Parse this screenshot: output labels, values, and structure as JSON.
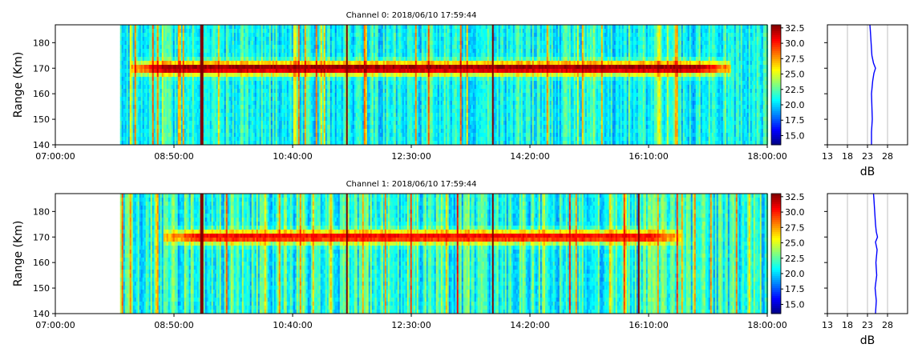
{
  "chart_data": [
    {
      "type": "heatmap",
      "title": "Channel 0: 2018/06/10 17:59:44",
      "ylabel": "Range (Km)",
      "xlim": [
        "07:00:00",
        "18:00:00"
      ],
      "x_ticks": [
        "07:00:00",
        "08:50:00",
        "10:40:00",
        "12:30:00",
        "14:20:00",
        "16:10:00",
        "18:00:00"
      ],
      "ylim": [
        140,
        187
      ],
      "y_ticks": [
        140,
        150,
        160,
        170,
        180
      ],
      "data_start": "08:00:00",
      "data_end": "17:59:44",
      "echo_layer": {
        "range_km": 170,
        "start": "08:10:00",
        "end": "17:25:00",
        "peak_db": 33
      },
      "background_db": [
        19,
        23
      ],
      "strong_columns": [
        "09:15:00",
        "11:30:00",
        "13:45:00"
      ],
      "colorbar": {
        "colormap": "jet",
        "min": 13.5,
        "max": 33,
        "ticks": [
          15.0,
          17.5,
          20.0,
          22.5,
          25.0,
          27.5,
          30.0,
          32.5
        ]
      },
      "profile": {
        "xlabel": "dB",
        "xlim": [
          13,
          33
        ],
        "x_ticks": [
          13,
          18,
          23,
          28
        ],
        "grid": true,
        "range_km": [
          140,
          145,
          150,
          155,
          160,
          165,
          168,
          170,
          172,
          175,
          180,
          185,
          187
        ],
        "db": [
          24.0,
          24.0,
          24.2,
          24.1,
          24.0,
          24.3,
          24.6,
          25.0,
          24.5,
          24.1,
          23.9,
          23.7,
          23.6
        ]
      }
    },
    {
      "type": "heatmap",
      "title": "Channel 1: 2018/06/10 17:59:44",
      "ylabel": "Range (Km)",
      "xlim": [
        "07:00:00",
        "18:00:00"
      ],
      "x_ticks": [
        "07:00:00",
        "08:50:00",
        "10:40:00",
        "12:30:00",
        "14:20:00",
        "16:10:00",
        "18:00:00"
      ],
      "ylim": [
        140,
        187
      ],
      "y_ticks": [
        140,
        150,
        160,
        170,
        180
      ],
      "data_start": "08:00:00",
      "data_end": "17:59:44",
      "echo_layer": {
        "range_km": 170,
        "start": "08:40:00",
        "end": "16:40:00",
        "peak_db": 31
      },
      "background_db": [
        19,
        24
      ],
      "strong_columns": [
        "09:15:00",
        "11:30:00",
        "13:45:00",
        "16:00:00"
      ],
      "colorbar": {
        "colormap": "jet",
        "min": 13.5,
        "max": 33,
        "ticks": [
          15.0,
          17.5,
          20.0,
          22.5,
          25.0,
          27.5,
          30.0,
          32.5
        ]
      },
      "profile": {
        "xlabel": "dB",
        "xlim": [
          13,
          33
        ],
        "x_ticks": [
          13,
          18,
          23,
          28
        ],
        "grid": true,
        "range_km": [
          140,
          145,
          150,
          155,
          160,
          165,
          168,
          170,
          172,
          175,
          180,
          185,
          187
        ],
        "db": [
          25.0,
          25.2,
          24.9,
          25.3,
          25.1,
          25.4,
          25.0,
          25.5,
          25.2,
          25.0,
          24.8,
          24.6,
          24.5
        ]
      }
    }
  ]
}
